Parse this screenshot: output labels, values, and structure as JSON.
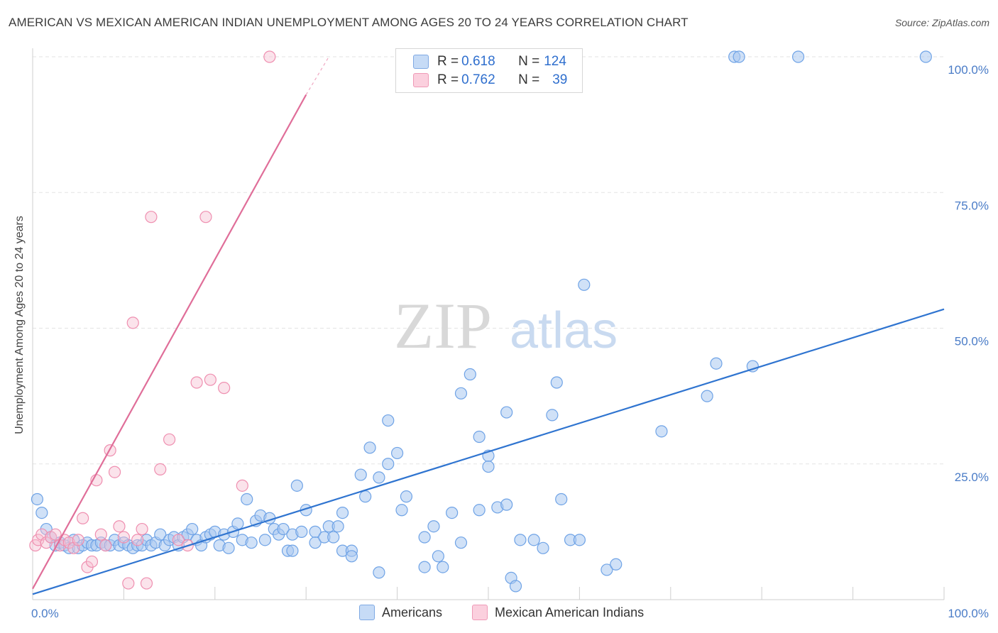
{
  "title": "AMERICAN VS MEXICAN AMERICAN INDIAN UNEMPLOYMENT AMONG AGES 20 TO 24 YEARS CORRELATION CHART",
  "source": "Source: ZipAtlas.com",
  "watermark": {
    "zip": "ZIP",
    "atlas": "atlas"
  },
  "legend_top": {
    "rows": [
      {
        "r_label": "R = ",
        "r_value": "0.618",
        "n_label": "N = ",
        "n_value": "124",
        "color": "#a9c7ee"
      },
      {
        "r_label": "R = ",
        "r_value": "0.762",
        "n_label": "N = ",
        "n_value": "39",
        "color": "#f6b8cb"
      }
    ]
  },
  "legend_bottom": [
    {
      "label": "Americans",
      "color": "#a9c7ee"
    },
    {
      "label": "Mexican American Indians",
      "color": "#f6b8cb"
    }
  ],
  "chart_data": {
    "type": "scatter",
    "ylabel": "Unemployment Among Ages 20 to 24 years",
    "xlim": [
      0,
      100
    ],
    "ylim": [
      0,
      100
    ],
    "x_tick_labels": [
      "0.0%",
      "100.0%"
    ],
    "y_ticks": [
      {
        "value": 25,
        "label": "25.0%"
      },
      {
        "value": 50,
        "label": "50.0%"
      },
      {
        "value": 75,
        "label": "75.0%"
      },
      {
        "value": 100,
        "label": "100.0%"
      }
    ],
    "grid": true,
    "colors": {
      "americans": "#6fa3e6",
      "americans_fill": "#aac8f0",
      "mexican": "#ef8fb0",
      "mexican_fill": "#f7c1d2",
      "blue_line": "#2f74d0",
      "pink_line": "#e06e99"
    },
    "series": [
      {
        "name": "Americans",
        "trend": {
          "x": [
            0,
            100
          ],
          "y": [
            1,
            53.5
          ]
        },
        "points": [
          [
            0.5,
            18.5
          ],
          [
            1,
            16
          ],
          [
            1.5,
            13
          ],
          [
            2,
            11.5
          ],
          [
            2.5,
            10
          ],
          [
            3,
            10.5
          ],
          [
            3.5,
            10
          ],
          [
            4,
            9.5
          ],
          [
            4.5,
            11
          ],
          [
            5,
            9.5
          ],
          [
            5.5,
            10
          ],
          [
            6,
            10.5
          ],
          [
            6.5,
            10
          ],
          [
            7,
            10
          ],
          [
            7.5,
            10.5
          ],
          [
            8,
            10
          ],
          [
            8.5,
            10
          ],
          [
            9,
            11
          ],
          [
            9.5,
            10
          ],
          [
            10,
            10.5
          ],
          [
            10.5,
            10
          ],
          [
            11,
            9.5
          ],
          [
            11.5,
            10
          ],
          [
            12,
            10
          ],
          [
            12.5,
            11
          ],
          [
            13,
            10
          ],
          [
            13.5,
            10.5
          ],
          [
            14,
            12
          ],
          [
            14.5,
            10
          ],
          [
            15,
            11
          ],
          [
            15.5,
            11.5
          ],
          [
            16,
            10
          ],
          [
            16.5,
            11.5
          ],
          [
            17,
            12
          ],
          [
            17.5,
            13
          ],
          [
            18,
            11
          ],
          [
            18.5,
            10
          ],
          [
            19,
            11.5
          ],
          [
            19.5,
            12
          ],
          [
            20,
            12.5
          ],
          [
            20.5,
            10
          ],
          [
            21,
            12
          ],
          [
            21.5,
            9.5
          ],
          [
            22,
            12.5
          ],
          [
            22.5,
            14
          ],
          [
            23,
            11
          ],
          [
            23.5,
            18.5
          ],
          [
            24,
            10.5
          ],
          [
            24.5,
            14.5
          ],
          [
            25,
            15.5
          ],
          [
            25.5,
            11
          ],
          [
            26,
            15
          ],
          [
            26.5,
            13
          ],
          [
            27,
            12
          ],
          [
            27.5,
            13
          ],
          [
            28,
            9
          ],
          [
            28.5,
            12
          ],
          [
            28.5,
            9
          ],
          [
            29,
            21
          ],
          [
            29.5,
            12.5
          ],
          [
            30,
            16.5
          ],
          [
            31,
            12.5
          ],
          [
            31,
            10.5
          ],
          [
            32,
            11.5
          ],
          [
            32.5,
            13.5
          ],
          [
            33,
            11.5
          ],
          [
            33.5,
            13.5
          ],
          [
            34,
            16
          ],
          [
            34,
            9
          ],
          [
            35,
            9
          ],
          [
            35,
            8
          ],
          [
            36,
            23
          ],
          [
            36.5,
            19
          ],
          [
            37,
            28
          ],
          [
            38,
            5
          ],
          [
            38,
            22.5
          ],
          [
            39,
            25
          ],
          [
            39,
            33
          ],
          [
            40,
            27
          ],
          [
            40.5,
            16.5
          ],
          [
            41,
            19
          ],
          [
            43,
            6
          ],
          [
            43,
            11.5
          ],
          [
            44,
            13.5
          ],
          [
            44.5,
            8
          ],
          [
            45,
            6
          ],
          [
            46,
            16
          ],
          [
            47,
            10.5
          ],
          [
            47,
            38
          ],
          [
            48,
            41.5
          ],
          [
            49,
            30
          ],
          [
            49,
            16.5
          ],
          [
            50,
            26.5
          ],
          [
            50,
            24.5
          ],
          [
            51,
            17
          ],
          [
            52,
            17.5
          ],
          [
            52,
            34.5
          ],
          [
            52.5,
            4
          ],
          [
            53,
            2.5
          ],
          [
            53.5,
            11
          ],
          [
            55,
            11
          ],
          [
            56,
            9.5
          ],
          [
            57,
            34
          ],
          [
            57.5,
            40
          ],
          [
            58,
            18.5
          ],
          [
            59,
            11
          ],
          [
            60,
            11
          ],
          [
            60.5,
            58
          ],
          [
            63,
            5.5
          ],
          [
            64,
            6.5
          ],
          [
            69,
            31
          ],
          [
            74,
            37.5
          ],
          [
            75,
            43.5
          ],
          [
            77,
            100
          ],
          [
            77.5,
            100
          ],
          [
            79,
            43
          ],
          [
            84,
            100
          ],
          [
            98,
            100
          ]
        ]
      },
      {
        "name": "Mexican American Indians",
        "trend": {
          "x": [
            0,
            30
          ],
          "y": [
            2,
            93
          ]
        },
        "trend_dashed": {
          "x": [
            30,
            32.5
          ],
          "y": [
            93,
            100
          ]
        },
        "points": [
          [
            0.3,
            10
          ],
          [
            0.6,
            11
          ],
          [
            1,
            12
          ],
          [
            1.5,
            10.5
          ],
          [
            2,
            11.5
          ],
          [
            2.5,
            12
          ],
          [
            3,
            10
          ],
          [
            3.5,
            11
          ],
          [
            4,
            10.5
          ],
          [
            4.5,
            9.5
          ],
          [
            5,
            11
          ],
          [
            5.5,
            15
          ],
          [
            6,
            6
          ],
          [
            6.5,
            7
          ],
          [
            7,
            22
          ],
          [
            7.5,
            12
          ],
          [
            8,
            10
          ],
          [
            8.5,
            27.5
          ],
          [
            9,
            23.5
          ],
          [
            9.5,
            13.5
          ],
          [
            10,
            11.5
          ],
          [
            10.5,
            3
          ],
          [
            11,
            51
          ],
          [
            11.5,
            11
          ],
          [
            12,
            13
          ],
          [
            12.5,
            3
          ],
          [
            13,
            70.5
          ],
          [
            14,
            24
          ],
          [
            15,
            29.5
          ],
          [
            16,
            11
          ],
          [
            17,
            10
          ],
          [
            18,
            40
          ],
          [
            19,
            70.5
          ],
          [
            19.5,
            40.5
          ],
          [
            21,
            39
          ],
          [
            23,
            21
          ],
          [
            26,
            100
          ]
        ]
      }
    ]
  }
}
